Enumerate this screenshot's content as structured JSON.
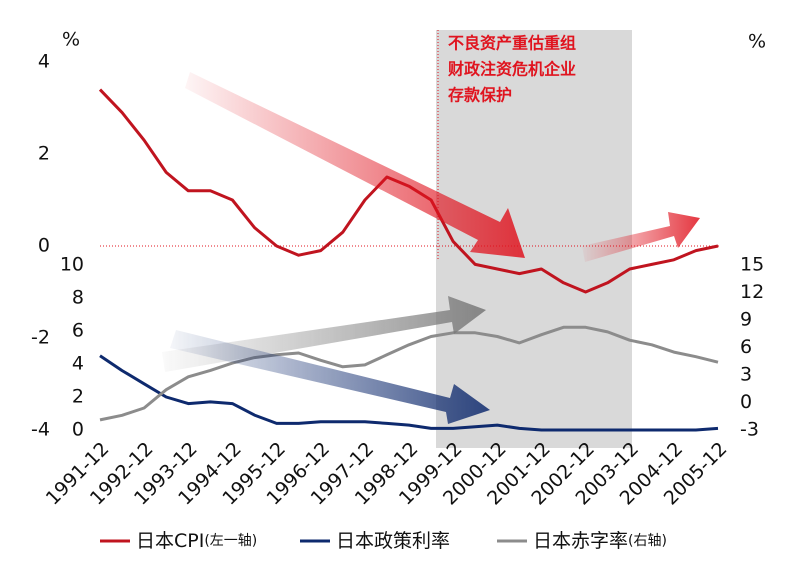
{
  "chart_data": {
    "type": "line",
    "annotation": [
      "不良资产重估重组",
      "财政注资危机企业",
      "存款保护"
    ],
    "y_unit": "%",
    "y2_unit": "%",
    "categories": [
      "1991-12",
      null,
      "1992-12",
      null,
      "1993-12",
      null,
      "1994-12",
      null,
      "1995-12",
      null,
      "1996-12",
      null,
      "1997-12",
      null,
      "1998-12",
      null,
      "1999-12",
      null,
      "2000-12",
      null,
      "2001-12",
      null,
      "2002-12",
      null,
      "2003-12",
      null,
      "2004-12",
      null,
      "2005-12"
    ],
    "ylim": [
      -4,
      4
    ],
    "yticks": [
      4,
      2,
      0,
      -2,
      -4
    ],
    "y3lim": [
      0,
      10
    ],
    "y3ticks": [
      10,
      8,
      6,
      4,
      2,
      0
    ],
    "y2lim": [
      -3,
      15
    ],
    "y2ticks": [
      15,
      12,
      9,
      6,
      3,
      0,
      -3
    ],
    "series": [
      {
        "name": "日本CPI",
        "legend_note": "(左一轴)",
        "color": "#c0141f",
        "axis": "y",
        "values": [
          3.4,
          2.9,
          2.3,
          1.6,
          1.2,
          1.2,
          1.0,
          0.4,
          0.0,
          -0.2,
          -0.1,
          0.3,
          1.0,
          1.5,
          1.3,
          1.0,
          0.1,
          -0.4,
          -0.5,
          -0.6,
          -0.5,
          -0.8,
          -1.0,
          -0.8,
          -0.5,
          -0.4,
          -0.3,
          -0.1,
          0.0
        ]
      },
      {
        "name": "日本政策利率",
        "color": "#0e2a6e",
        "axis": "y3",
        "values": [
          4.5,
          3.6,
          2.8,
          2.0,
          1.6,
          1.7,
          1.6,
          0.9,
          0.4,
          0.4,
          0.5,
          0.5,
          0.5,
          0.4,
          0.3,
          0.1,
          0.1,
          0.2,
          0.3,
          0.1,
          0.0,
          0.0,
          0.0,
          0.0,
          0.0,
          0.0,
          0.0,
          0.0,
          0.1
        ]
      },
      {
        "name": "日本赤字率",
        "legend_note": "(右轴)",
        "color": "#8c8c8c",
        "axis": "y2",
        "values": [
          -1.9,
          -1.4,
          -0.6,
          1.4,
          2.8,
          3.5,
          4.3,
          4.9,
          5.2,
          5.4,
          4.6,
          3.9,
          4.1,
          5.2,
          6.3,
          7.2,
          7.6,
          7.6,
          7.2,
          6.5,
          7.4,
          8.2,
          8.2,
          7.7,
          6.8,
          6.3,
          5.5,
          5.0,
          4.4
        ]
      }
    ]
  }
}
